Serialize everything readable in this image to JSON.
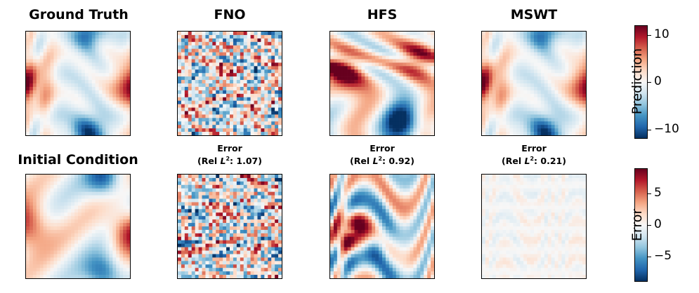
{
  "colors": {
    "diverging_map": [
      "#053061",
      "#2166ac",
      "#4393c3",
      "#92c5de",
      "#d1e5f0",
      "#f7f7f7",
      "#fddbc7",
      "#f4a582",
      "#d6604d",
      "#b2182b",
      "#67001f"
    ]
  },
  "chart_data": [
    {
      "type": "heatmap",
      "titles": {
        "ground_truth": "Ground Truth",
        "fno": "FNO",
        "hfs": "HFS",
        "mswt": "MSWT",
        "initial_condition": "Initial Condition"
      },
      "error_titles": {
        "fno": {
          "line1": "Error",
          "line2_prefix": "(Rel ",
          "l2": "L",
          "sup": "2",
          "line2_suffix": ": 1.07)",
          "rel_l2": 1.07
        },
        "hfs": {
          "line1": "Error",
          "line2_prefix": "(Rel ",
          "l2": "L",
          "sup": "2",
          "line2_suffix": ": 0.92)",
          "rel_l2": 0.92
        },
        "mswt": {
          "line1": "Error",
          "line2_prefix": "(Rel ",
          "l2": "L",
          "sup": "2",
          "line2_suffix": ": 0.21)",
          "rel_l2": 0.21
        }
      },
      "colorbars": [
        {
          "label": "Prediction",
          "range": [
            -12,
            12
          ],
          "ticks": [
            {
              "label": "10",
              "value": 10
            },
            {
              "label": "0",
              "value": 0
            },
            {
              "label": "−10",
              "value": -10
            }
          ]
        },
        {
          "label": "Error",
          "range": [
            -9,
            9
          ],
          "ticks": [
            {
              "label": "5",
              "value": 5
            },
            {
              "label": "0",
              "value": 0
            },
            {
              "label": "−5",
              "value": -5
            }
          ]
        }
      ]
    }
  ]
}
